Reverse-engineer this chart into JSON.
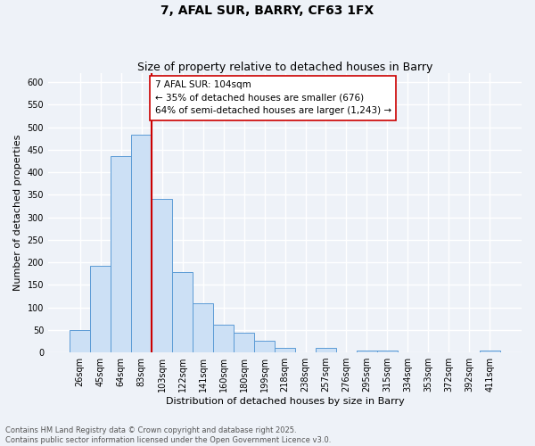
{
  "title": "7, AFAL SUR, BARRY, CF63 1FX",
  "subtitle": "Size of property relative to detached houses in Barry",
  "xlabel": "Distribution of detached houses by size in Barry",
  "ylabel": "Number of detached properties",
  "bar_labels": [
    "26sqm",
    "45sqm",
    "64sqm",
    "83sqm",
    "103sqm",
    "122sqm",
    "141sqm",
    "160sqm",
    "180sqm",
    "199sqm",
    "218sqm",
    "238sqm",
    "257sqm",
    "276sqm",
    "295sqm",
    "315sqm",
    "334sqm",
    "353sqm",
    "372sqm",
    "392sqm",
    "411sqm"
  ],
  "bar_values": [
    50,
    192,
    435,
    483,
    340,
    178,
    110,
    62,
    44,
    25,
    11,
    0,
    10,
    0,
    5,
    5,
    0,
    0,
    0,
    0,
    5
  ],
  "bar_color": "#cce0f5",
  "bar_edge_color": "#5b9bd5",
  "ylim": [
    0,
    620
  ],
  "yticks": [
    0,
    50,
    100,
    150,
    200,
    250,
    300,
    350,
    400,
    450,
    500,
    550,
    600
  ],
  "vline_index": 4,
  "vline_color": "#cc0000",
  "annotation_line1": "7 AFAL SUR: 104sqm",
  "annotation_line2": "← 35% of detached houses are smaller (676)",
  "annotation_line3": "64% of semi-detached houses are larger (1,243) →",
  "annotation_box_color": "#ffffff",
  "annotation_box_edge": "#cc0000",
  "bg_color": "#eef2f8",
  "grid_color": "#ffffff",
  "footer_line1": "Contains HM Land Registry data © Crown copyright and database right 2025.",
  "footer_line2": "Contains public sector information licensed under the Open Government Licence v3.0.",
  "title_fontsize": 10,
  "subtitle_fontsize": 9,
  "axis_label_fontsize": 8,
  "tick_fontsize": 7,
  "annotation_fontsize": 7.5,
  "footer_fontsize": 6
}
